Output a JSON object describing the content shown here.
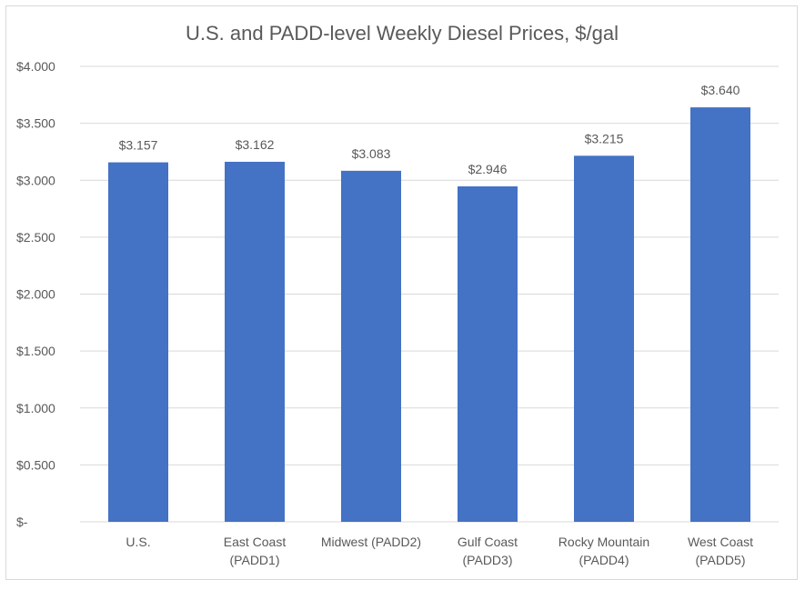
{
  "chart_data": {
    "type": "bar",
    "title": "U.S. and PADD-level  Weekly Diesel Prices, $/gal",
    "categories": [
      [
        "U.S."
      ],
      [
        "East Coast",
        "(PADD1)"
      ],
      [
        "Midwest (PADD2)"
      ],
      [
        "Gulf Coast",
        "(PADD3)"
      ],
      [
        "Rocky Mountain",
        "(PADD4)"
      ],
      [
        "West Coast",
        "(PADD5)"
      ]
    ],
    "values": [
      3.157,
      3.162,
      3.083,
      2.946,
      3.215,
      3.64
    ],
    "data_labels": [
      "$3.157",
      "$3.162",
      "$3.083",
      "$2.946",
      "$3.215",
      "$3.640"
    ],
    "y_ticks": [
      0,
      0.5,
      1,
      1.5,
      2,
      2.5,
      3,
      3.5,
      4
    ],
    "y_tick_labels": [
      "$-",
      "$0.500",
      "$1.000",
      "$1.500",
      "$2.000",
      "$2.500",
      "$3.000",
      "$3.500",
      "$4.000"
    ],
    "ylim": [
      0,
      4
    ],
    "xlabel": "",
    "ylabel": "",
    "grid": true,
    "legend": "none",
    "bar_color": "#4472C4",
    "grid_color": "#d9d9d9"
  }
}
